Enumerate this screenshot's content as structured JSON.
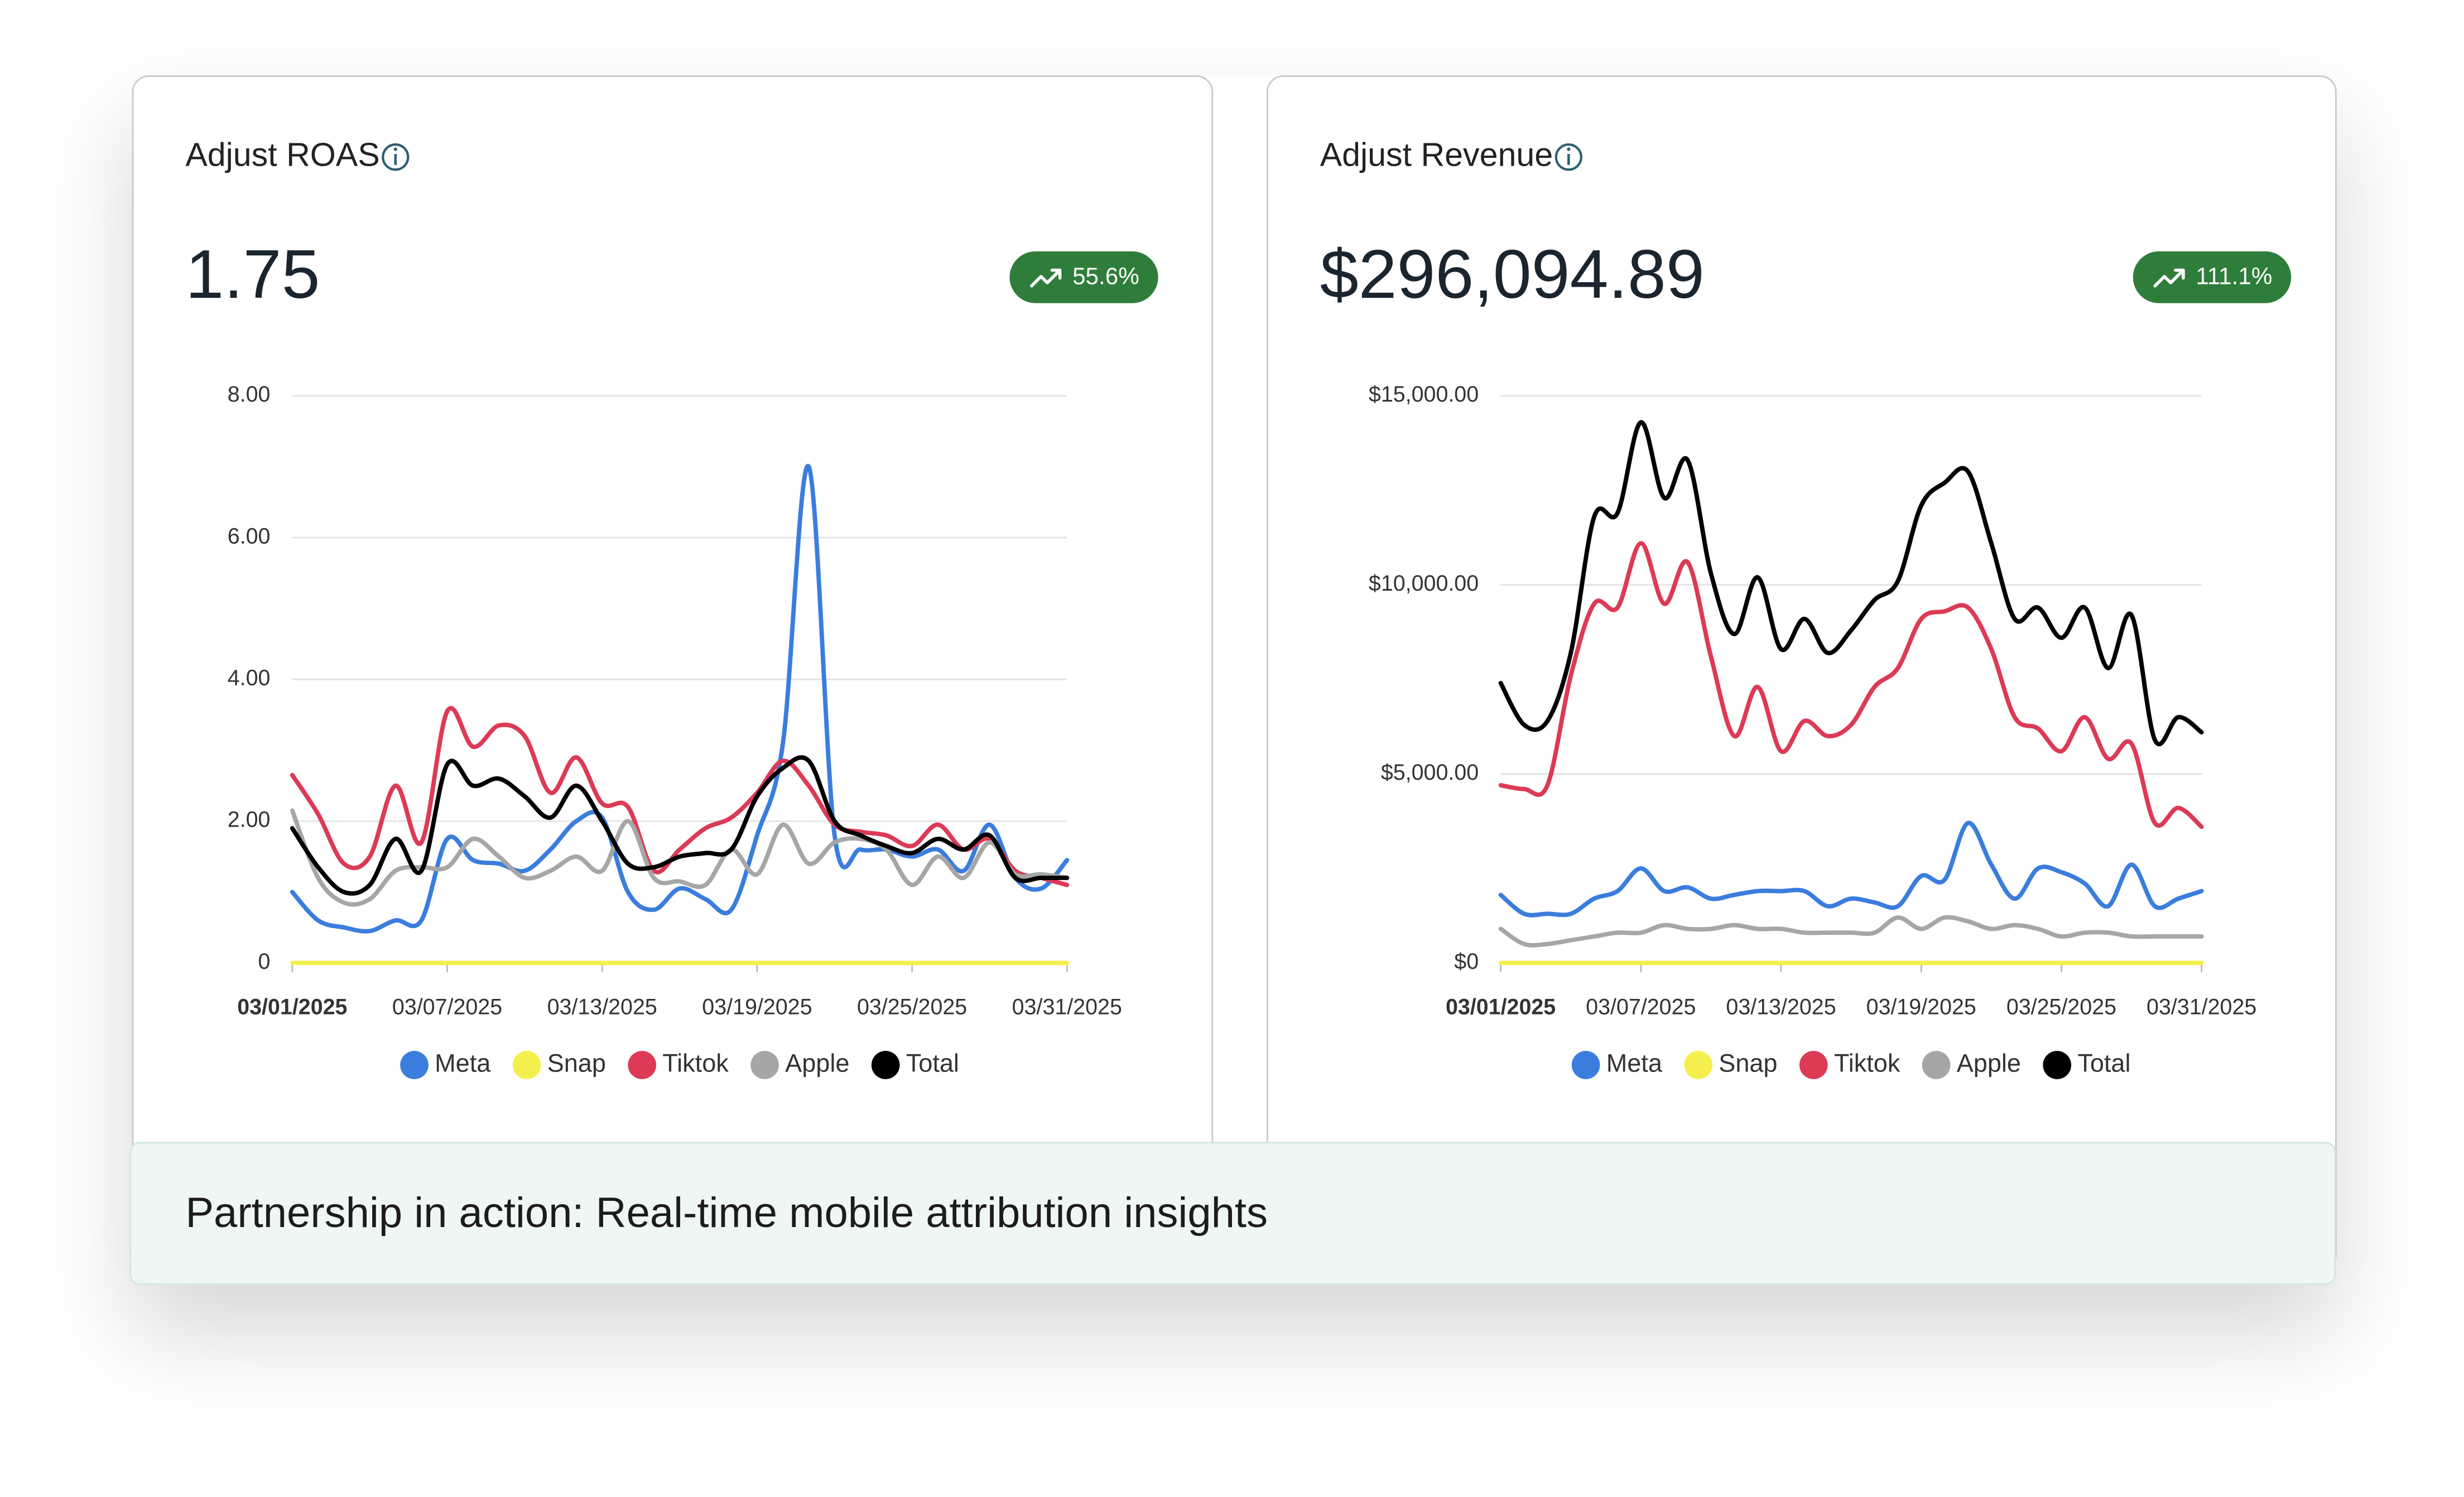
{
  "caption": "Partnership in action: Real-time mobile attribution insights",
  "chart_data": [
    {
      "type": "line",
      "title": "Adjust ROAS",
      "kpi_value": "1.75",
      "change": "55.6%",
      "categories": [
        "03/01/2025",
        null,
        null,
        null,
        null,
        null,
        "03/07/2025",
        null,
        null,
        null,
        null,
        null,
        "03/13/2025",
        null,
        null,
        null,
        null,
        null,
        "03/19/2025",
        null,
        null,
        null,
        null,
        null,
        "03/25/2025",
        null,
        null,
        null,
        null,
        null,
        "03/31/2025"
      ],
      "ylim": [
        0,
        8
      ],
      "yticks": [
        0,
        {
          "value": 2,
          "label": "2.00"
        },
        {
          "value": 4,
          "label": "4.00"
        },
        {
          "value": 6,
          "label": "6.00"
        },
        {
          "value": 8,
          "label": "8.00"
        }
      ],
      "grid": true,
      "series": [
        {
          "name": "Meta",
          "color": "#3b7ddd",
          "values": [
            1.0,
            0.6,
            0.5,
            0.45,
            0.6,
            0.6,
            1.75,
            1.45,
            1.4,
            1.3,
            1.6,
            2.0,
            2.05,
            1.0,
            0.75,
            1.05,
            0.9,
            0.75,
            1.8,
            3.1,
            7.0,
            1.8,
            1.6,
            1.6,
            1.5,
            1.6,
            1.3,
            1.95,
            1.2,
            1.05,
            1.45
          ]
        },
        {
          "name": "Snap",
          "color": "#f5ef4e",
          "values": [
            0,
            0,
            0,
            0,
            0,
            0,
            0,
            0,
            0,
            0,
            0,
            0,
            0,
            0,
            0,
            0,
            0,
            0,
            0,
            0,
            0,
            0,
            0,
            0,
            0,
            0,
            0,
            0,
            0,
            0,
            0
          ]
        },
        {
          "name": "Tiktok",
          "color": "#dc3a55",
          "values": [
            2.65,
            2.1,
            1.4,
            1.5,
            2.5,
            1.7,
            3.55,
            3.05,
            3.35,
            3.2,
            2.4,
            2.9,
            2.25,
            2.2,
            1.3,
            1.6,
            1.9,
            2.05,
            2.4,
            2.85,
            2.5,
            1.95,
            1.85,
            1.8,
            1.65,
            1.95,
            1.6,
            1.75,
            1.3,
            1.2,
            1.1
          ]
        },
        {
          "name": "Apple",
          "color": "#a6a6a6",
          "values": [
            2.15,
            1.2,
            0.85,
            0.9,
            1.3,
            1.35,
            1.35,
            1.75,
            1.5,
            1.2,
            1.3,
            1.5,
            1.3,
            2.0,
            1.2,
            1.15,
            1.1,
            1.6,
            1.25,
            1.95,
            1.4,
            1.7,
            1.75,
            1.6,
            1.1,
            1.5,
            1.2,
            1.7,
            1.25,
            1.25,
            1.2
          ]
        },
        {
          "name": "Total",
          "color": "#000000",
          "values": [
            1.9,
            1.35,
            1.0,
            1.1,
            1.75,
            1.3,
            2.8,
            2.5,
            2.6,
            2.35,
            2.05,
            2.5,
            2.0,
            1.4,
            1.35,
            1.5,
            1.55,
            1.6,
            2.35,
            2.75,
            2.85,
            2.0,
            1.8,
            1.65,
            1.55,
            1.75,
            1.6,
            1.8,
            1.2,
            1.2,
            1.2
          ]
        }
      ]
    },
    {
      "type": "line",
      "title": "Adjust Revenue",
      "kpi_value": "$296,094.89",
      "change": "111.1%",
      "categories": [
        "03/01/2025",
        null,
        null,
        null,
        null,
        null,
        "03/07/2025",
        null,
        null,
        null,
        null,
        null,
        "03/13/2025",
        null,
        null,
        null,
        null,
        null,
        "03/19/2025",
        null,
        null,
        null,
        null,
        null,
        "03/25/2025",
        null,
        null,
        null,
        null,
        null,
        "03/31/2025"
      ],
      "ylim": [
        0,
        15000
      ],
      "yticks": [
        {
          "value": 0,
          "label": "$0"
        },
        {
          "value": 5000,
          "label": "$5,000.00"
        },
        {
          "value": 10000,
          "label": "$10,000.00"
        },
        {
          "value": 15000,
          "label": "$15,000.00"
        }
      ],
      "grid": true,
      "series": [
        {
          "name": "Meta",
          "color": "#3b7ddd",
          "values": [
            1800,
            1300,
            1300,
            1300,
            1700,
            1900,
            2500,
            1900,
            2000,
            1700,
            1800,
            1900,
            1900,
            1900,
            1500,
            1700,
            1600,
            1500,
            2300,
            2200,
            3700,
            2600,
            1700,
            2500,
            2400,
            2100,
            1500,
            2600,
            1500,
            1700,
            1900
          ]
        },
        {
          "name": "Snap",
          "color": "#f5ef4e",
          "values": [
            0,
            0,
            0,
            0,
            0,
            0,
            0,
            0,
            0,
            0,
            0,
            0,
            0,
            0,
            0,
            0,
            0,
            0,
            0,
            0,
            0,
            0,
            0,
            0,
            0,
            0,
            0,
            0,
            0,
            0,
            0
          ]
        },
        {
          "name": "Tiktok",
          "color": "#dc3a55",
          "values": [
            4700,
            4600,
            4700,
            7600,
            9500,
            9400,
            11100,
            9500,
            10600,
            8100,
            6000,
            7300,
            5600,
            6400,
            6000,
            6300,
            7300,
            7800,
            9100,
            9300,
            9400,
            8300,
            6500,
            6200,
            5600,
            6500,
            5400,
            5800,
            3700,
            4100,
            3600
          ]
        },
        {
          "name": "Apple",
          "color": "#a6a6a6",
          "values": [
            900,
            500,
            500,
            600,
            700,
            800,
            800,
            1000,
            900,
            900,
            1000,
            900,
            900,
            800,
            800,
            800,
            800,
            1200,
            900,
            1200,
            1100,
            900,
            1000,
            900,
            700,
            800,
            800,
            700,
            700,
            700,
            700
          ]
        },
        {
          "name": "Total",
          "color": "#000000",
          "values": [
            7400,
            6300,
            6400,
            8200,
            11800,
            11900,
            14300,
            12300,
            13300,
            10300,
            8700,
            10200,
            8300,
            9100,
            8200,
            8800,
            9600,
            10100,
            12100,
            12700,
            13000,
            11100,
            9100,
            9400,
            8600,
            9400,
            7800,
            9200,
            5900,
            6500,
            6100
          ]
        }
      ]
    }
  ]
}
